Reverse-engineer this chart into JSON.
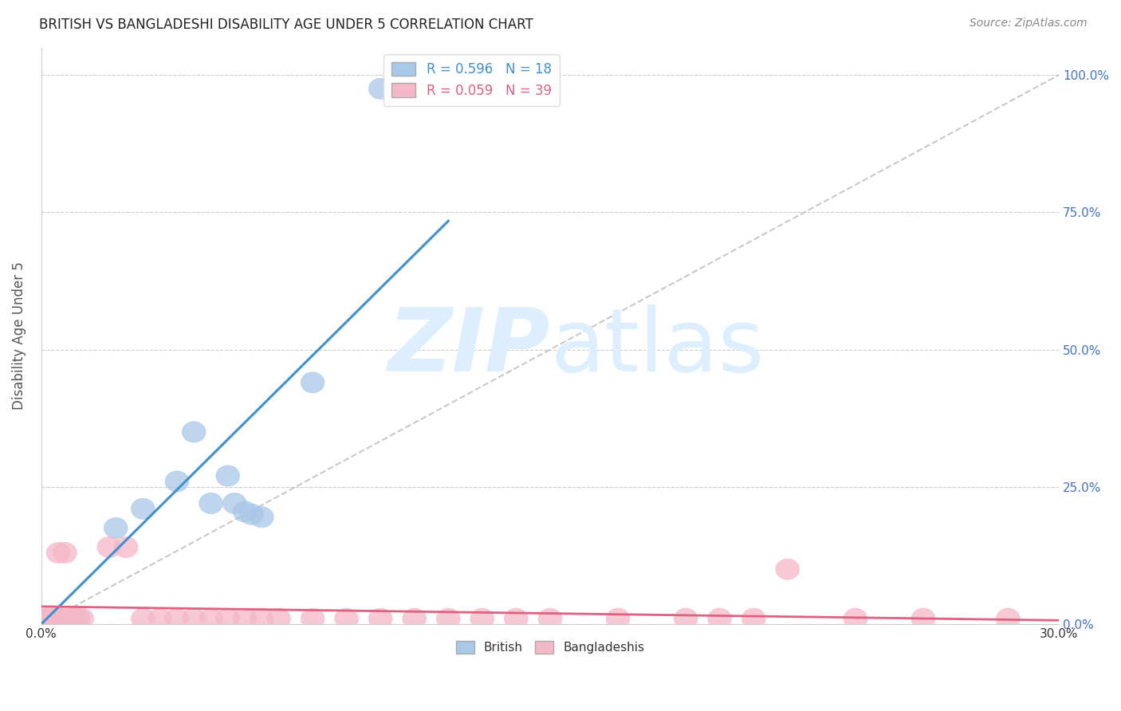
{
  "title": "BRITISH VS BANGLADESHI DISABILITY AGE UNDER 5 CORRELATION CHART",
  "source": "Source: ZipAtlas.com",
  "ylabel": "Disability Age Under 5",
  "british_color": "#a8c8e8",
  "bangladeshi_color": "#f4b8c8",
  "british_line_color": "#4090d0",
  "bangladeshi_line_color": "#e06080",
  "reference_line_color": "#bbbbbb",
  "background_color": "#ffffff",
  "watermark_color": "#ddeeff",
  "xlim": [
    0.0,
    0.3
  ],
  "ylim": [
    0.0,
    1.05
  ],
  "ytick_vals": [
    0.0,
    0.25,
    0.5,
    0.75,
    1.0
  ],
  "ytick_labels_right": [
    "0.0%",
    "25.0%",
    "50.0%",
    "75.0%",
    "100.0%"
  ],
  "british_x": [
    0.001,
    0.002,
    0.003,
    0.004,
    0.005,
    0.006,
    0.022,
    0.03,
    0.04,
    0.045,
    0.05,
    0.055,
    0.057,
    0.06,
    0.062,
    0.065,
    0.08,
    0.1
  ],
  "british_y": [
    0.01,
    0.01,
    0.01,
    0.01,
    0.01,
    0.01,
    0.175,
    0.21,
    0.26,
    0.35,
    0.22,
    0.27,
    0.22,
    0.205,
    0.2,
    0.195,
    0.44,
    0.975
  ],
  "bangladeshi_x": [
    0.001,
    0.002,
    0.003,
    0.004,
    0.005,
    0.006,
    0.007,
    0.008,
    0.009,
    0.01,
    0.011,
    0.012,
    0.02,
    0.025,
    0.03,
    0.035,
    0.04,
    0.045,
    0.05,
    0.055,
    0.06,
    0.065,
    0.07,
    0.08,
    0.09,
    0.1,
    0.11,
    0.12,
    0.13,
    0.14,
    0.15,
    0.17,
    0.19,
    0.2,
    0.21,
    0.22,
    0.24,
    0.26,
    0.285
  ],
  "bangladeshi_y": [
    0.01,
    0.01,
    0.01,
    0.01,
    0.13,
    0.01,
    0.13,
    0.01,
    0.01,
    0.01,
    0.01,
    0.01,
    0.14,
    0.14,
    0.01,
    0.01,
    0.01,
    0.01,
    0.01,
    0.01,
    0.01,
    0.01,
    0.01,
    0.01,
    0.01,
    0.01,
    0.01,
    0.01,
    0.01,
    0.01,
    0.01,
    0.01,
    0.01,
    0.01,
    0.01,
    0.1,
    0.01,
    0.01,
    0.01
  ],
  "legend_top_british": "R = 0.596   N = 18",
  "legend_top_bangladeshi": "R = 0.059   N = 39",
  "legend_bottom_british": "British",
  "legend_bottom_bangladeshi": "Bangladeshis"
}
